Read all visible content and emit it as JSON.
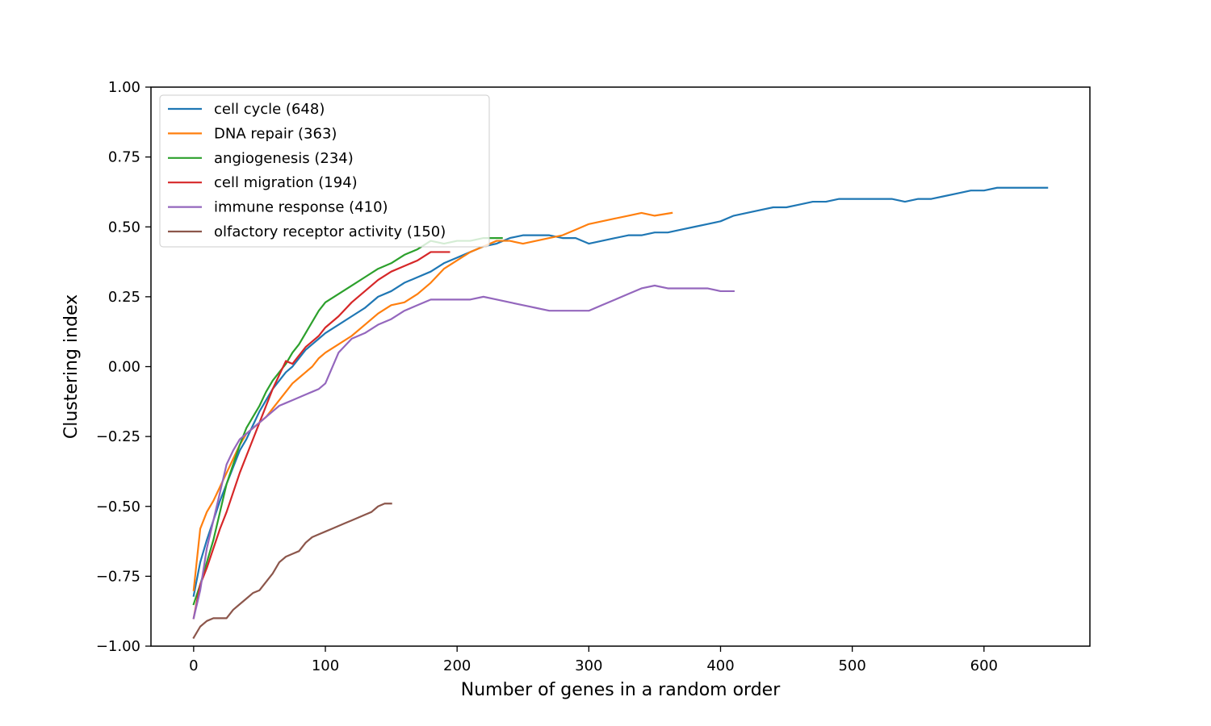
{
  "chart_data": {
    "type": "line",
    "title": "",
    "xlabel": "Number of genes in a random order",
    "ylabel": "Clustering index",
    "xlim": [
      -32.4,
      680.4
    ],
    "ylim": [
      -1.0,
      1.0
    ],
    "xticks": [
      0,
      100,
      200,
      300,
      400,
      500,
      600
    ],
    "xtick_labels": [
      "0",
      "100",
      "200",
      "300",
      "400",
      "500",
      "600"
    ],
    "yticks": [
      -1.0,
      -0.75,
      -0.5,
      -0.25,
      0.0,
      0.25,
      0.5,
      0.75,
      1.0
    ],
    "ytick_labels": [
      "−1.00",
      "−0.75",
      "−0.50",
      "−0.25",
      "0.00",
      "0.25",
      "0.50",
      "0.75",
      "1.00"
    ],
    "grid": false,
    "legend_position": "upper-left",
    "series": [
      {
        "name": "cell cycle (648)",
        "color": "#1f77b4",
        "points": [
          [
            0,
            -0.82
          ],
          [
            5,
            -0.7
          ],
          [
            10,
            -0.62
          ],
          [
            15,
            -0.55
          ],
          [
            20,
            -0.48
          ],
          [
            25,
            -0.42
          ],
          [
            30,
            -0.36
          ],
          [
            35,
            -0.3
          ],
          [
            40,
            -0.26
          ],
          [
            45,
            -0.21
          ],
          [
            50,
            -0.16
          ],
          [
            55,
            -0.12
          ],
          [
            60,
            -0.08
          ],
          [
            65,
            -0.05
          ],
          [
            70,
            -0.02
          ],
          [
            75,
            0.0
          ],
          [
            80,
            0.03
          ],
          [
            85,
            0.06
          ],
          [
            90,
            0.08
          ],
          [
            95,
            0.1
          ],
          [
            100,
            0.12
          ],
          [
            110,
            0.15
          ],
          [
            120,
            0.18
          ],
          [
            130,
            0.21
          ],
          [
            140,
            0.25
          ],
          [
            150,
            0.27
          ],
          [
            160,
            0.3
          ],
          [
            170,
            0.32
          ],
          [
            180,
            0.34
          ],
          [
            190,
            0.37
          ],
          [
            200,
            0.39
          ],
          [
            210,
            0.41
          ],
          [
            220,
            0.43
          ],
          [
            230,
            0.44
          ],
          [
            240,
            0.46
          ],
          [
            250,
            0.47
          ],
          [
            260,
            0.47
          ],
          [
            270,
            0.47
          ],
          [
            280,
            0.46
          ],
          [
            290,
            0.46
          ],
          [
            300,
            0.44
          ],
          [
            310,
            0.45
          ],
          [
            320,
            0.46
          ],
          [
            330,
            0.47
          ],
          [
            340,
            0.47
          ],
          [
            350,
            0.48
          ],
          [
            360,
            0.48
          ],
          [
            370,
            0.49
          ],
          [
            380,
            0.5
          ],
          [
            390,
            0.51
          ],
          [
            400,
            0.52
          ],
          [
            410,
            0.54
          ],
          [
            420,
            0.55
          ],
          [
            430,
            0.56
          ],
          [
            440,
            0.57
          ],
          [
            450,
            0.57
          ],
          [
            460,
            0.58
          ],
          [
            470,
            0.59
          ],
          [
            480,
            0.59
          ],
          [
            490,
            0.6
          ],
          [
            500,
            0.6
          ],
          [
            510,
            0.6
          ],
          [
            520,
            0.6
          ],
          [
            530,
            0.6
          ],
          [
            540,
            0.59
          ],
          [
            550,
            0.6
          ],
          [
            560,
            0.6
          ],
          [
            570,
            0.61
          ],
          [
            580,
            0.62
          ],
          [
            590,
            0.63
          ],
          [
            600,
            0.63
          ],
          [
            610,
            0.64
          ],
          [
            620,
            0.64
          ],
          [
            630,
            0.64
          ],
          [
            640,
            0.64
          ],
          [
            648,
            0.64
          ]
        ]
      },
      {
        "name": "DNA repair (363)",
        "color": "#ff7f0e",
        "points": [
          [
            0,
            -0.8
          ],
          [
            5,
            -0.58
          ],
          [
            10,
            -0.52
          ],
          [
            15,
            -0.48
          ],
          [
            20,
            -0.43
          ],
          [
            25,
            -0.38
          ],
          [
            30,
            -0.33
          ],
          [
            35,
            -0.28
          ],
          [
            40,
            -0.24
          ],
          [
            45,
            -0.22
          ],
          [
            50,
            -0.2
          ],
          [
            55,
            -0.18
          ],
          [
            60,
            -0.15
          ],
          [
            65,
            -0.12
          ],
          [
            70,
            -0.09
          ],
          [
            75,
            -0.06
          ],
          [
            80,
            -0.04
          ],
          [
            85,
            -0.02
          ],
          [
            90,
            0.0
          ],
          [
            95,
            0.03
          ],
          [
            100,
            0.05
          ],
          [
            110,
            0.08
          ],
          [
            120,
            0.11
          ],
          [
            130,
            0.15
          ],
          [
            140,
            0.19
          ],
          [
            150,
            0.22
          ],
          [
            160,
            0.23
          ],
          [
            170,
            0.26
          ],
          [
            180,
            0.3
          ],
          [
            190,
            0.35
          ],
          [
            200,
            0.38
          ],
          [
            210,
            0.41
          ],
          [
            220,
            0.43
          ],
          [
            230,
            0.45
          ],
          [
            240,
            0.45
          ],
          [
            250,
            0.44
          ],
          [
            260,
            0.45
          ],
          [
            270,
            0.46
          ],
          [
            280,
            0.47
          ],
          [
            290,
            0.49
          ],
          [
            300,
            0.51
          ],
          [
            310,
            0.52
          ],
          [
            320,
            0.53
          ],
          [
            330,
            0.54
          ],
          [
            340,
            0.55
          ],
          [
            350,
            0.54
          ],
          [
            363,
            0.55
          ]
        ]
      },
      {
        "name": "angiogenesis (234)",
        "color": "#2ca02c",
        "points": [
          [
            0,
            -0.85
          ],
          [
            5,
            -0.78
          ],
          [
            10,
            -0.7
          ],
          [
            15,
            -0.62
          ],
          [
            20,
            -0.52
          ],
          [
            25,
            -0.42
          ],
          [
            30,
            -0.35
          ],
          [
            35,
            -0.28
          ],
          [
            40,
            -0.22
          ],
          [
            45,
            -0.18
          ],
          [
            50,
            -0.14
          ],
          [
            55,
            -0.09
          ],
          [
            60,
            -0.05
          ],
          [
            65,
            -0.02
          ],
          [
            70,
            0.01
          ],
          [
            75,
            0.05
          ],
          [
            80,
            0.08
          ],
          [
            85,
            0.12
          ],
          [
            90,
            0.16
          ],
          [
            95,
            0.2
          ],
          [
            100,
            0.23
          ],
          [
            110,
            0.26
          ],
          [
            120,
            0.29
          ],
          [
            130,
            0.32
          ],
          [
            140,
            0.35
          ],
          [
            150,
            0.37
          ],
          [
            160,
            0.4
          ],
          [
            170,
            0.42
          ],
          [
            180,
            0.45
          ],
          [
            190,
            0.44
          ],
          [
            200,
            0.45
          ],
          [
            210,
            0.45
          ],
          [
            220,
            0.46
          ],
          [
            234,
            0.46
          ]
        ]
      },
      {
        "name": "cell migration (194)",
        "color": "#d62728",
        "points": [
          [
            0,
            -0.9
          ],
          [
            5,
            -0.78
          ],
          [
            10,
            -0.72
          ],
          [
            15,
            -0.65
          ],
          [
            20,
            -0.58
          ],
          [
            25,
            -0.52
          ],
          [
            30,
            -0.45
          ],
          [
            35,
            -0.38
          ],
          [
            40,
            -0.32
          ],
          [
            45,
            -0.26
          ],
          [
            50,
            -0.2
          ],
          [
            55,
            -0.14
          ],
          [
            60,
            -0.08
          ],
          [
            65,
            -0.03
          ],
          [
            70,
            0.02
          ],
          [
            75,
            0.01
          ],
          [
            80,
            0.04
          ],
          [
            85,
            0.07
          ],
          [
            90,
            0.09
          ],
          [
            95,
            0.11
          ],
          [
            100,
            0.14
          ],
          [
            110,
            0.18
          ],
          [
            120,
            0.23
          ],
          [
            130,
            0.27
          ],
          [
            140,
            0.31
          ],
          [
            150,
            0.34
          ],
          [
            160,
            0.36
          ],
          [
            170,
            0.38
          ],
          [
            180,
            0.41
          ],
          [
            194,
            0.41
          ]
        ]
      },
      {
        "name": "immune response (410)",
        "color": "#9467bd",
        "points": [
          [
            0,
            -0.9
          ],
          [
            5,
            -0.8
          ],
          [
            10,
            -0.65
          ],
          [
            15,
            -0.55
          ],
          [
            20,
            -0.45
          ],
          [
            25,
            -0.35
          ],
          [
            30,
            -0.3
          ],
          [
            35,
            -0.26
          ],
          [
            40,
            -0.24
          ],
          [
            45,
            -0.22
          ],
          [
            50,
            -0.2
          ],
          [
            55,
            -0.18
          ],
          [
            60,
            -0.16
          ],
          [
            65,
            -0.14
          ],
          [
            70,
            -0.13
          ],
          [
            75,
            -0.12
          ],
          [
            80,
            -0.11
          ],
          [
            85,
            -0.1
          ],
          [
            90,
            -0.09
          ],
          [
            95,
            -0.08
          ],
          [
            100,
            -0.06
          ],
          [
            110,
            0.05
          ],
          [
            120,
            0.1
          ],
          [
            130,
            0.12
          ],
          [
            140,
            0.15
          ],
          [
            150,
            0.17
          ],
          [
            160,
            0.2
          ],
          [
            170,
            0.22
          ],
          [
            180,
            0.24
          ],
          [
            190,
            0.24
          ],
          [
            200,
            0.24
          ],
          [
            210,
            0.24
          ],
          [
            220,
            0.25
          ],
          [
            230,
            0.24
          ],
          [
            240,
            0.23
          ],
          [
            250,
            0.22
          ],
          [
            260,
            0.21
          ],
          [
            270,
            0.2
          ],
          [
            280,
            0.2
          ],
          [
            290,
            0.2
          ],
          [
            300,
            0.2
          ],
          [
            310,
            0.22
          ],
          [
            320,
            0.24
          ],
          [
            330,
            0.26
          ],
          [
            340,
            0.28
          ],
          [
            350,
            0.29
          ],
          [
            360,
            0.28
          ],
          [
            370,
            0.28
          ],
          [
            380,
            0.28
          ],
          [
            390,
            0.28
          ],
          [
            400,
            0.27
          ],
          [
            410,
            0.27
          ]
        ]
      },
      {
        "name": "olfactory receptor activity (150)",
        "color": "#8c564b",
        "points": [
          [
            0,
            -0.97
          ],
          [
            5,
            -0.93
          ],
          [
            10,
            -0.91
          ],
          [
            15,
            -0.9
          ],
          [
            20,
            -0.9
          ],
          [
            25,
            -0.9
          ],
          [
            30,
            -0.87
          ],
          [
            35,
            -0.85
          ],
          [
            40,
            -0.83
          ],
          [
            45,
            -0.81
          ],
          [
            50,
            -0.8
          ],
          [
            55,
            -0.77
          ],
          [
            60,
            -0.74
          ],
          [
            65,
            -0.7
          ],
          [
            70,
            -0.68
          ],
          [
            75,
            -0.67
          ],
          [
            80,
            -0.66
          ],
          [
            85,
            -0.63
          ],
          [
            90,
            -0.61
          ],
          [
            95,
            -0.6
          ],
          [
            100,
            -0.59
          ],
          [
            105,
            -0.58
          ],
          [
            110,
            -0.57
          ],
          [
            115,
            -0.56
          ],
          [
            120,
            -0.55
          ],
          [
            125,
            -0.54
          ],
          [
            130,
            -0.53
          ],
          [
            135,
            -0.52
          ],
          [
            140,
            -0.5
          ],
          [
            145,
            -0.49
          ],
          [
            150,
            -0.49
          ]
        ]
      }
    ]
  }
}
